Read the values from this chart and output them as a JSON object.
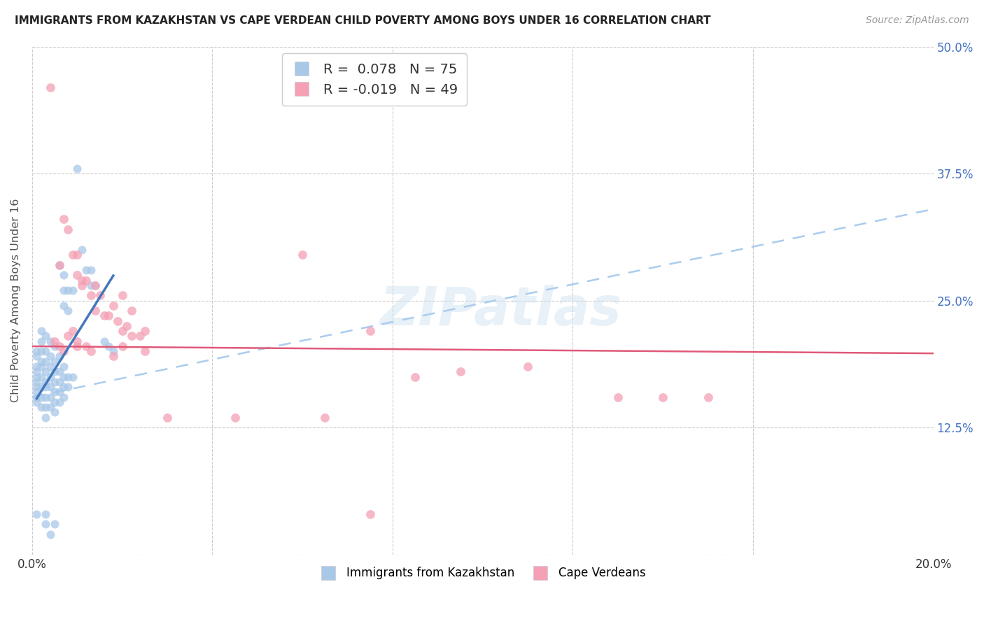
{
  "title": "IMMIGRANTS FROM KAZAKHSTAN VS CAPE VERDEAN CHILD POVERTY AMONG BOYS UNDER 16 CORRELATION CHART",
  "source": "Source: ZipAtlas.com",
  "ylabel": "Child Poverty Among Boys Under 16",
  "x_ticks": [
    0.0,
    0.04,
    0.08,
    0.12,
    0.16,
    0.2
  ],
  "x_tick_labels": [
    "0.0%",
    "",
    "",
    "",
    "",
    "20.0%"
  ],
  "y_ticks": [
    0.0,
    0.125,
    0.25,
    0.375,
    0.5
  ],
  "y_tick_labels": [
    "",
    "12.5%",
    "25.0%",
    "37.5%",
    "50.0%"
  ],
  "x_min": 0.0,
  "x_max": 0.2,
  "y_min": 0.0,
  "y_max": 0.5,
  "kaz_color": "#a8c8e8",
  "cape_color": "#f4a0b5",
  "kaz_R": 0.078,
  "kaz_N": 75,
  "cape_R": -0.019,
  "cape_N": 49,
  "kaz_line_color": "#4477bb",
  "cape_line_color": "#e05878",
  "dashed_line_color": "#aaccee",
  "watermark": "ZIPatlas",
  "kaz_scatter": [
    [
      0.001,
      0.2
    ],
    [
      0.001,
      0.195
    ],
    [
      0.001,
      0.185
    ],
    [
      0.001,
      0.18
    ],
    [
      0.001,
      0.175
    ],
    [
      0.001,
      0.17
    ],
    [
      0.001,
      0.165
    ],
    [
      0.001,
      0.16
    ],
    [
      0.001,
      0.155
    ],
    [
      0.001,
      0.15
    ],
    [
      0.002,
      0.22
    ],
    [
      0.002,
      0.21
    ],
    [
      0.002,
      0.2
    ],
    [
      0.002,
      0.19
    ],
    [
      0.002,
      0.185
    ],
    [
      0.002,
      0.175
    ],
    [
      0.002,
      0.165
    ],
    [
      0.002,
      0.155
    ],
    [
      0.002,
      0.145
    ],
    [
      0.003,
      0.215
    ],
    [
      0.003,
      0.2
    ],
    [
      0.003,
      0.19
    ],
    [
      0.003,
      0.18
    ],
    [
      0.003,
      0.17
    ],
    [
      0.003,
      0.165
    ],
    [
      0.003,
      0.155
    ],
    [
      0.003,
      0.145
    ],
    [
      0.003,
      0.135
    ],
    [
      0.004,
      0.21
    ],
    [
      0.004,
      0.195
    ],
    [
      0.004,
      0.185
    ],
    [
      0.004,
      0.175
    ],
    [
      0.004,
      0.165
    ],
    [
      0.004,
      0.155
    ],
    [
      0.004,
      0.145
    ],
    [
      0.005,
      0.205
    ],
    [
      0.005,
      0.19
    ],
    [
      0.005,
      0.18
    ],
    [
      0.005,
      0.17
    ],
    [
      0.005,
      0.16
    ],
    [
      0.005,
      0.15
    ],
    [
      0.005,
      0.14
    ],
    [
      0.006,
      0.285
    ],
    [
      0.006,
      0.195
    ],
    [
      0.006,
      0.18
    ],
    [
      0.006,
      0.17
    ],
    [
      0.006,
      0.16
    ],
    [
      0.006,
      0.15
    ],
    [
      0.007,
      0.275
    ],
    [
      0.007,
      0.26
    ],
    [
      0.007,
      0.245
    ],
    [
      0.007,
      0.185
    ],
    [
      0.007,
      0.175
    ],
    [
      0.007,
      0.165
    ],
    [
      0.007,
      0.155
    ],
    [
      0.008,
      0.26
    ],
    [
      0.008,
      0.24
    ],
    [
      0.008,
      0.175
    ],
    [
      0.008,
      0.165
    ],
    [
      0.009,
      0.26
    ],
    [
      0.009,
      0.175
    ],
    [
      0.01,
      0.38
    ],
    [
      0.011,
      0.3
    ],
    [
      0.012,
      0.28
    ],
    [
      0.013,
      0.28
    ],
    [
      0.013,
      0.265
    ],
    [
      0.014,
      0.265
    ],
    [
      0.016,
      0.21
    ],
    [
      0.017,
      0.205
    ],
    [
      0.018,
      0.2
    ],
    [
      0.001,
      0.04
    ],
    [
      0.003,
      0.04
    ],
    [
      0.003,
      0.03
    ],
    [
      0.004,
      0.02
    ],
    [
      0.005,
      0.03
    ]
  ],
  "cape_scatter": [
    [
      0.004,
      0.46
    ],
    [
      0.006,
      0.285
    ],
    [
      0.007,
      0.33
    ],
    [
      0.008,
      0.32
    ],
    [
      0.009,
      0.295
    ],
    [
      0.01,
      0.295
    ],
    [
      0.01,
      0.275
    ],
    [
      0.011,
      0.27
    ],
    [
      0.011,
      0.265
    ],
    [
      0.012,
      0.27
    ],
    [
      0.013,
      0.255
    ],
    [
      0.014,
      0.265
    ],
    [
      0.014,
      0.24
    ],
    [
      0.015,
      0.255
    ],
    [
      0.016,
      0.235
    ],
    [
      0.017,
      0.235
    ],
    [
      0.018,
      0.245
    ],
    [
      0.019,
      0.23
    ],
    [
      0.02,
      0.255
    ],
    [
      0.02,
      0.22
    ],
    [
      0.021,
      0.225
    ],
    [
      0.022,
      0.24
    ],
    [
      0.022,
      0.215
    ],
    [
      0.024,
      0.215
    ],
    [
      0.025,
      0.22
    ],
    [
      0.005,
      0.21
    ],
    [
      0.006,
      0.205
    ],
    [
      0.007,
      0.2
    ],
    [
      0.008,
      0.215
    ],
    [
      0.009,
      0.22
    ],
    [
      0.01,
      0.21
    ],
    [
      0.01,
      0.205
    ],
    [
      0.012,
      0.205
    ],
    [
      0.013,
      0.2
    ],
    [
      0.018,
      0.195
    ],
    [
      0.02,
      0.205
    ],
    [
      0.025,
      0.2
    ],
    [
      0.06,
      0.295
    ],
    [
      0.075,
      0.22
    ],
    [
      0.085,
      0.175
    ],
    [
      0.095,
      0.18
    ],
    [
      0.11,
      0.185
    ],
    [
      0.13,
      0.155
    ],
    [
      0.14,
      0.155
    ],
    [
      0.15,
      0.155
    ],
    [
      0.03,
      0.135
    ],
    [
      0.045,
      0.135
    ],
    [
      0.065,
      0.135
    ],
    [
      0.075,
      0.04
    ]
  ]
}
